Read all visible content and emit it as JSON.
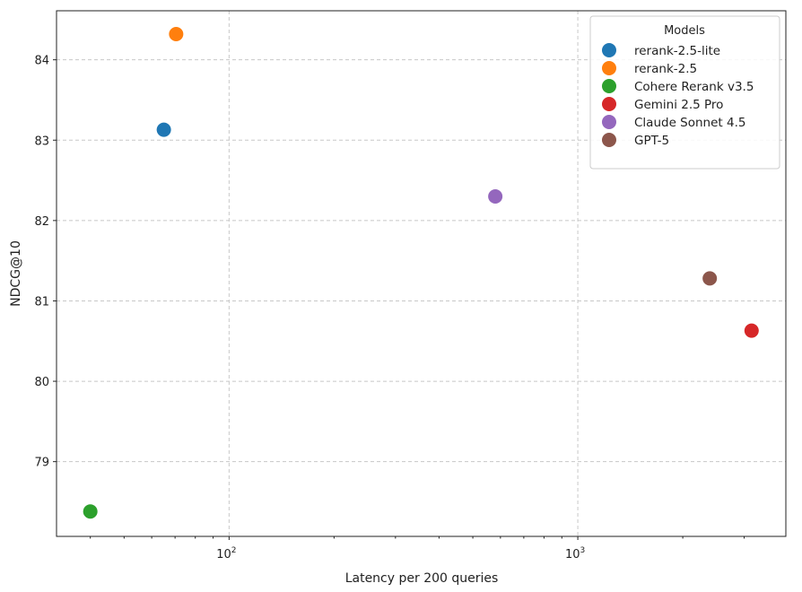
{
  "chart_data": {
    "type": "scatter",
    "title": "",
    "xlabel": "Latency per 200 queries",
    "ylabel": "NDCG@10",
    "xscale": "log",
    "xlim": [
      32,
      3950
    ],
    "ylim": [
      78.07,
      84.61
    ],
    "xticks": [
      {
        "value": 100,
        "base": "10",
        "exp": "2"
      },
      {
        "value": 1000,
        "base": "10",
        "exp": "3"
      }
    ],
    "yticks": [
      79,
      80,
      81,
      82,
      83,
      84
    ],
    "grid": true,
    "legend": {
      "title": "Models",
      "placement": "top-right"
    },
    "series": [
      {
        "name": "rerank-2.5-lite",
        "color": "#1f77b4",
        "x": 65,
        "y": 83.13
      },
      {
        "name": "rerank-2.5",
        "color": "#ff7f0e",
        "x": 70.5,
        "y": 84.32
      },
      {
        "name": "Cohere Rerank v3.5",
        "color": "#2ca02c",
        "x": 40,
        "y": 78.38
      },
      {
        "name": "Gemini 2.5 Pro",
        "color": "#d62728",
        "x": 3150,
        "y": 80.63
      },
      {
        "name": "Claude Sonnet 4.5",
        "color": "#9467bd",
        "x": 580,
        "y": 82.3
      },
      {
        "name": "GPT-5",
        "color": "#8c564b",
        "x": 2390,
        "y": 81.28
      }
    ]
  }
}
